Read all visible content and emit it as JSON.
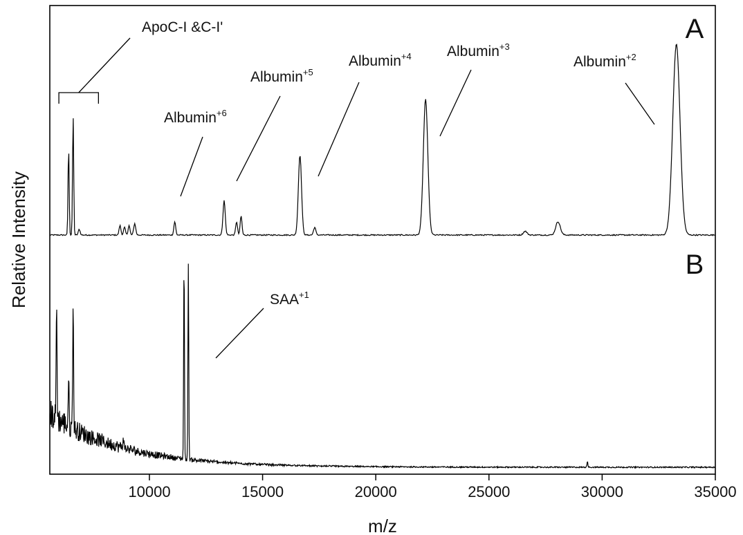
{
  "chart_data": {
    "type": "line",
    "title": "",
    "xlabel": "m/z",
    "ylabel": "Relative Intensity",
    "xlim": [
      5600,
      35000
    ],
    "xticks": [
      10000,
      15000,
      20000,
      25000,
      30000,
      35000
    ],
    "tick_labels": [
      "10000",
      "15000",
      "20000",
      "25000",
      "30000",
      "35000"
    ],
    "grid": false,
    "legend": "none",
    "color": "#000000",
    "panels": [
      {
        "label": "A",
        "baseline": 0,
        "peaks": [
          {
            "mz": 6430,
            "height": 0.46,
            "width": 25
          },
          {
            "mz": 6630,
            "height": 0.63,
            "width": 25
          },
          {
            "mz": 6900,
            "height": 0.03,
            "width": 40
          },
          {
            "mz": 8700,
            "height": 0.05,
            "width": 40
          },
          {
            "mz": 8900,
            "height": 0.04,
            "width": 40
          },
          {
            "mz": 9100,
            "height": 0.05,
            "width": 40
          },
          {
            "mz": 9350,
            "height": 0.06,
            "width": 45
          },
          {
            "mz": 11120,
            "height": 0.07,
            "width": 40
          },
          {
            "mz": 13300,
            "height": 0.18,
            "width": 50
          },
          {
            "mz": 13850,
            "height": 0.07,
            "width": 40
          },
          {
            "mz": 14050,
            "height": 0.1,
            "width": 40
          },
          {
            "mz": 16650,
            "height": 0.42,
            "width": 70
          },
          {
            "mz": 17300,
            "height": 0.04,
            "width": 50
          },
          {
            "mz": 22200,
            "height": 0.71,
            "width": 100
          },
          {
            "mz": 26600,
            "height": 0.02,
            "width": 80
          },
          {
            "mz": 28050,
            "height": 0.07,
            "width": 100
          },
          {
            "mz": 33280,
            "height": 1.0,
            "width": 160
          }
        ],
        "annotations": [
          {
            "text": "ApoC-I &C-I'",
            "sup": "",
            "mz_range": [
              6000,
              7750
            ]
          },
          {
            "text": "Albumin",
            "sup": "+6",
            "mz": 11120
          },
          {
            "text": "Albumin",
            "sup": "+5",
            "mz": 13300
          },
          {
            "text": "Albumin",
            "sup": "+4",
            "mz": 16650
          },
          {
            "text": "Albumin",
            "sup": "+3",
            "mz": 22200
          },
          {
            "text": "Albumin",
            "sup": "+2",
            "mz": 33280
          }
        ]
      },
      {
        "label": "B",
        "baseline": 0,
        "decay": {
          "amplitude": 0.26,
          "scale": 3200
        },
        "peaks": [
          {
            "mz": 5900,
            "height": 0.55,
            "width": 20
          },
          {
            "mz": 6430,
            "height": 0.22,
            "width": 20
          },
          {
            "mz": 6630,
            "height": 0.6,
            "width": 20
          },
          {
            "mz": 8850,
            "height": 0.05,
            "width": 20
          },
          {
            "mz": 11530,
            "height": 0.96,
            "width": 18
          },
          {
            "mz": 11720,
            "height": 0.94,
            "width": 18
          },
          {
            "mz": 29350,
            "height": 0.03,
            "width": 20
          }
        ],
        "annotations": [
          {
            "text": "SAA",
            "sup": "+1",
            "mz": 11620
          }
        ]
      }
    ]
  }
}
